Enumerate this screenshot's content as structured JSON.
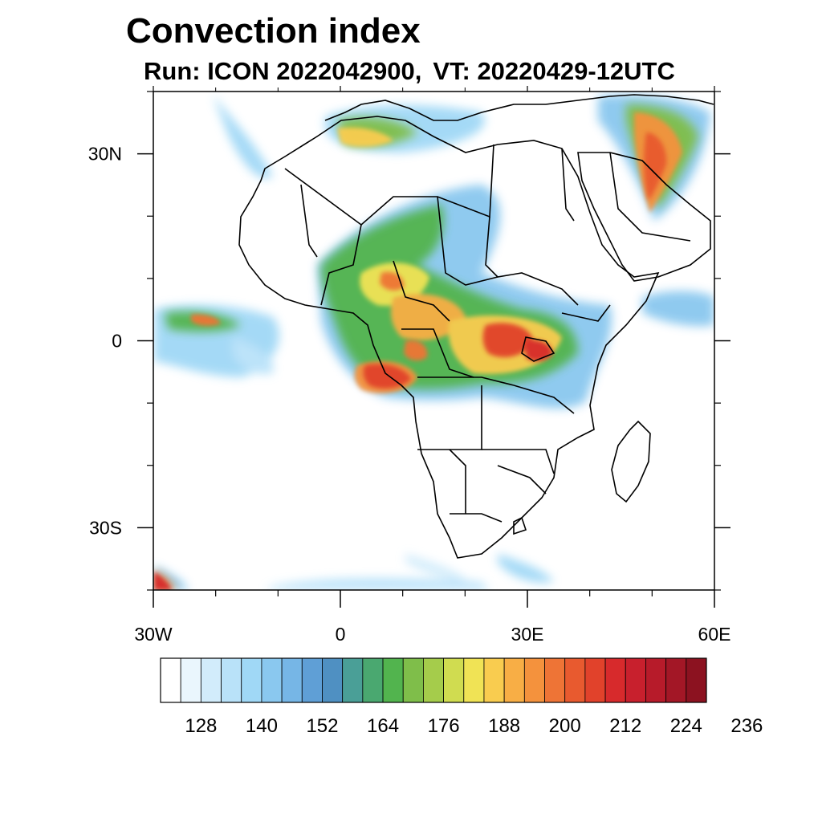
{
  "title": "Convection index",
  "subtitle": {
    "run": "Run: ICON 2022042900,",
    "vt": "VT: 20220429-12UTC"
  },
  "axes": {
    "x_ticks": [
      {
        "value": -30,
        "label": "30W"
      },
      {
        "value": 0,
        "label": "0"
      },
      {
        "value": 30,
        "label": "30E"
      },
      {
        "value": 60,
        "label": "60E"
      }
    ],
    "y_ticks": [
      {
        "value": 30,
        "label": "30N"
      },
      {
        "value": 0,
        "label": "0"
      },
      {
        "value": -30,
        "label": "30S"
      }
    ],
    "lon_range": [
      -30,
      60
    ],
    "lat_range": [
      -40,
      40
    ]
  },
  "colorbar": {
    "colors": [
      "#ffffff",
      "#eaf6fd",
      "#d2ecfb",
      "#b9e2f9",
      "#a0d8f6",
      "#8ac8ef",
      "#76b6e6",
      "#5f9fd6",
      "#4f90c2",
      "#4a9f97",
      "#4aa870",
      "#52b44e",
      "#7fbe4a",
      "#a5cc4b",
      "#d0dc50",
      "#f0e355",
      "#f9cc4f",
      "#f8ae45",
      "#f4923d",
      "#ee7436",
      "#e85a2f",
      "#e1422b",
      "#d72a2c",
      "#c8202d",
      "#b71b2a",
      "#a31726",
      "#8c1220"
    ],
    "labels": [
      "128",
      "140",
      "152",
      "164",
      "176",
      "188",
      "200",
      "212",
      "224",
      "236"
    ]
  }
}
